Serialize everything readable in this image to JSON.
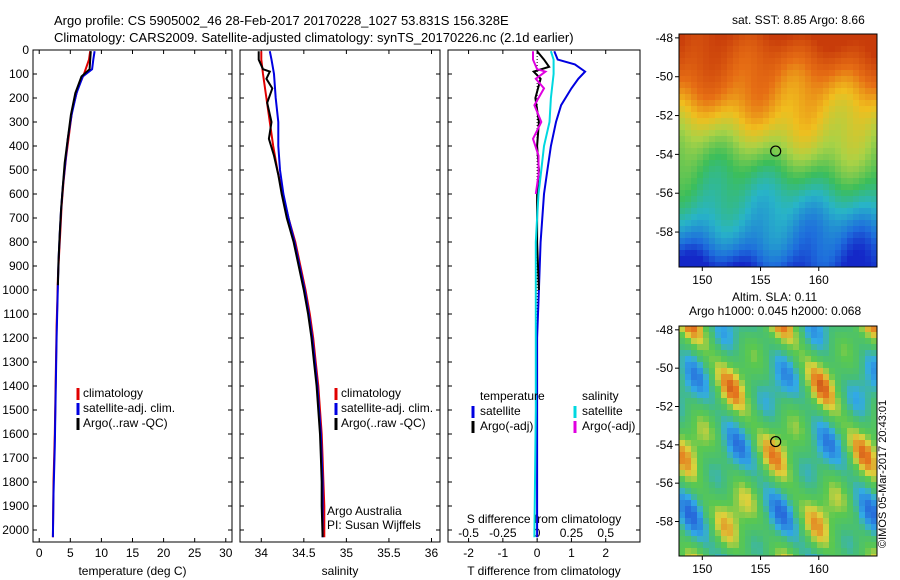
{
  "header": {
    "title_line1": "Argo profile: CS 5905002_46 28-Feb-2017 20170228_1027 53.831S 156.328E",
    "title_line2": "Climatology: CARS2009. Satellite-adjusted climatology: synTS_20170226.nc (2.1d earlier)"
  },
  "colors": {
    "climatology": "#e00000",
    "satellite": "#0000e0",
    "argo": "#000000",
    "satellite_s": "#00d8e0",
    "argo_s": "#e000e0"
  },
  "chart_data": [
    {
      "id": "temperature",
      "type": "line",
      "xlabel": "temperature (deg C)",
      "xlim": [
        -1,
        31
      ],
      "xticks": [
        0,
        5,
        10,
        15,
        20,
        25,
        30
      ],
      "ylim": [
        0,
        2050
      ],
      "yticks": [
        0,
        100,
        200,
        300,
        400,
        500,
        600,
        700,
        800,
        900,
        1000,
        1100,
        1200,
        1300,
        1400,
        1500,
        1600,
        1700,
        1800,
        1900,
        2000
      ],
      "legend": [
        "climatology",
        "satellite-adj. clim.",
        "Argo(..raw -QC)"
      ],
      "series": [
        {
          "name": "climatology",
          "color": "#e00000",
          "points": [
            [
              8.2,
              5
            ],
            [
              8.0,
              40
            ],
            [
              7.2,
              100
            ],
            [
              6.2,
              160
            ],
            [
              5.3,
              250
            ],
            [
              4.8,
              350
            ],
            [
              4.3,
              450
            ],
            [
              3.9,
              550
            ],
            [
              3.6,
              650
            ],
            [
              3.4,
              750
            ],
            [
              3.2,
              850
            ],
            [
              3.0,
              950
            ],
            [
              2.9,
              1050
            ],
            [
              2.8,
              1150
            ],
            [
              2.7,
              1300
            ],
            [
              2.6,
              1450
            ],
            [
              2.5,
              1600
            ],
            [
              2.3,
              1800
            ],
            [
              2.2,
              2030
            ]
          ]
        },
        {
          "name": "satellite-adj. clim.",
          "color": "#0000e0",
          "points": [
            [
              8.9,
              5
            ],
            [
              8.7,
              40
            ],
            [
              8.5,
              80
            ],
            [
              7.0,
              110
            ],
            [
              6.0,
              180
            ],
            [
              5.2,
              270
            ],
            [
              4.6,
              370
            ],
            [
              4.2,
              470
            ],
            [
              3.8,
              570
            ],
            [
              3.5,
              670
            ],
            [
              3.3,
              770
            ],
            [
              3.1,
              880
            ],
            [
              3.0,
              980
            ],
            [
              2.9,
              1080
            ],
            [
              2.8,
              1200
            ],
            [
              2.7,
              1350
            ],
            [
              2.6,
              1500
            ],
            [
              2.5,
              1650
            ],
            [
              2.3,
              1850
            ],
            [
              2.2,
              2030
            ]
          ]
        },
        {
          "name": "Argo(..raw -QC)",
          "color": "#000000",
          "points": [
            [
              8.3,
              5
            ],
            [
              8.2,
              40
            ],
            [
              8.1,
              80
            ],
            [
              6.8,
              110
            ],
            [
              5.8,
              180
            ],
            [
              5.1,
              270
            ],
            [
              4.6,
              370
            ],
            [
              4.1,
              470
            ],
            [
              3.8,
              570
            ],
            [
              3.5,
              670
            ],
            [
              3.3,
              770
            ],
            [
              3.1,
              880
            ],
            [
              3.0,
              980
            ]
          ]
        }
      ]
    },
    {
      "id": "salinity",
      "type": "line",
      "xlabel": "salinity",
      "xlim": [
        33.75,
        36.1
      ],
      "xticks": [
        34,
        34.5,
        35,
        35.5,
        36
      ],
      "xtick_labels": [
        "34",
        "34.5",
        "35",
        "35.5",
        "36"
      ],
      "ylim": [
        0,
        2050
      ],
      "legend": [
        "climatology",
        "satellite-adj. clim.",
        "Argo(..raw -QC)"
      ],
      "annotations": [
        "Argo Australia",
        "PI: Susan Wijffels"
      ],
      "series": [
        {
          "name": "climatology",
          "color": "#e00000",
          "points": [
            [
              34.0,
              5
            ],
            [
              34.0,
              40
            ],
            [
              34.02,
              100
            ],
            [
              34.06,
              200
            ],
            [
              34.1,
              300
            ],
            [
              34.14,
              400
            ],
            [
              34.19,
              500
            ],
            [
              34.25,
              600
            ],
            [
              34.32,
              700
            ],
            [
              34.4,
              800
            ],
            [
              34.46,
              900
            ],
            [
              34.52,
              1000
            ],
            [
              34.57,
              1100
            ],
            [
              34.61,
              1200
            ],
            [
              34.64,
              1300
            ],
            [
              34.67,
              1400
            ],
            [
              34.69,
              1500
            ],
            [
              34.71,
              1600
            ],
            [
              34.72,
              1700
            ],
            [
              34.73,
              1800
            ],
            [
              34.74,
              1900
            ],
            [
              34.74,
              2030
            ]
          ]
        },
        {
          "name": "satellite-adj. clim.",
          "color": "#0000e0",
          "points": [
            [
              34.1,
              5
            ],
            [
              34.12,
              40
            ],
            [
              34.15,
              100
            ],
            [
              34.17,
              200
            ],
            [
              34.2,
              300
            ],
            [
              34.2,
              400
            ],
            [
              34.22,
              500
            ],
            [
              34.26,
              600
            ],
            [
              34.32,
              700
            ],
            [
              34.39,
              800
            ],
            [
              34.45,
              900
            ],
            [
              34.51,
              1000
            ],
            [
              34.56,
              1100
            ],
            [
              34.6,
              1200
            ],
            [
              34.63,
              1300
            ],
            [
              34.66,
              1400
            ],
            [
              34.68,
              1500
            ],
            [
              34.7,
              1600
            ],
            [
              34.71,
              1700
            ],
            [
              34.72,
              1800
            ],
            [
              34.72,
              1900
            ],
            [
              34.72,
              2030
            ]
          ]
        },
        {
          "name": "Argo(..raw -QC)",
          "color": "#000000",
          "points": [
            [
              33.97,
              5
            ],
            [
              33.97,
              40
            ],
            [
              34.02,
              80
            ],
            [
              34.1,
              90
            ],
            [
              34.06,
              120
            ],
            [
              34.13,
              160
            ],
            [
              34.07,
              220
            ],
            [
              34.12,
              300
            ],
            [
              34.09,
              370
            ],
            [
              34.15,
              440
            ],
            [
              34.2,
              520
            ],
            [
              34.24,
              600
            ],
            [
              34.3,
              700
            ],
            [
              34.38,
              800
            ],
            [
              34.44,
              900
            ],
            [
              34.5,
              1000
            ],
            [
              34.55,
              1100
            ],
            [
              34.59,
              1200
            ],
            [
              34.62,
              1300
            ],
            [
              34.65,
              1400
            ],
            [
              34.67,
              1500
            ],
            [
              34.69,
              1600
            ],
            [
              34.7,
              1700
            ],
            [
              34.71,
              1800
            ],
            [
              34.71,
              1900
            ],
            [
              34.72,
              2030
            ]
          ]
        }
      ]
    },
    {
      "id": "difference",
      "type": "line",
      "xlabel": "T difference from climatology",
      "x2label": "S difference from climatology",
      "xlim": [
        -2.6,
        3.0
      ],
      "xticks": [
        -2,
        -1,
        0,
        1,
        2
      ],
      "xtick_labels": [
        "-2",
        "-1",
        "0",
        "1",
        "2"
      ],
      "x2ticks": [
        -0.5,
        -0.25,
        0,
        0.25,
        0.5
      ],
      "x2tick_labels": [
        "-0.5",
        "-0.25",
        "0",
        "0.25",
        "0.5"
      ],
      "x2lim": [
        -0.65,
        0.75
      ],
      "ylim": [
        0,
        2050
      ],
      "legend_groups": [
        {
          "heading": "temperature",
          "items": [
            "satellite",
            "Argo(-adj)"
          ]
        },
        {
          "heading": "salinity",
          "items": [
            "satellite",
            "Argo(-adj)"
          ]
        }
      ],
      "series": [
        {
          "name": "temperature satellite",
          "color": "#0000e0",
          "points": [
            [
              0.5,
              5
            ],
            [
              0.6,
              40
            ],
            [
              1.1,
              60
            ],
            [
              1.4,
              90
            ],
            [
              1.2,
              120
            ],
            [
              1.0,
              160
            ],
            [
              0.7,
              230
            ],
            [
              0.55,
              300
            ],
            [
              0.4,
              400
            ],
            [
              0.3,
              500
            ],
            [
              0.2,
              600
            ],
            [
              0.15,
              700
            ],
            [
              0.1,
              800
            ],
            [
              0.05,
              1000
            ],
            [
              0.0,
              1200
            ],
            [
              0.0,
              1600
            ],
            [
              0.0,
              2030
            ]
          ]
        },
        {
          "name": "temperature Argo(-adj)",
          "color": "#000000",
          "points": [
            [
              0.0,
              5
            ],
            [
              0.2,
              40
            ],
            [
              0.35,
              70
            ],
            [
              -0.1,
              90
            ],
            [
              0.1,
              120
            ],
            [
              -0.05,
              200
            ],
            [
              0.05,
              300
            ],
            [
              0.0,
              400
            ],
            [
              0.05,
              500
            ],
            [
              0.0,
              600
            ],
            [
              0.0,
              800
            ],
            [
              0.05,
              1000
            ]
          ]
        },
        {
          "name": "salinity satellite",
          "color": "#00d8e0",
          "points": [
            [
              0.1,
              5
            ],
            [
              0.12,
              40
            ],
            [
              0.12,
              100
            ],
            [
              0.1,
              200
            ],
            [
              0.09,
              300
            ],
            [
              0.05,
              400
            ],
            [
              0.03,
              500
            ],
            [
              0.01,
              600
            ],
            [
              0.0,
              700
            ],
            [
              -0.01,
              800
            ],
            [
              -0.01,
              1000
            ],
            [
              -0.01,
              1500
            ],
            [
              -0.02,
              2030
            ]
          ]
        },
        {
          "name": "salinity Argo(-adj)",
          "color": "#e000e0",
          "points": [
            [
              -0.03,
              5
            ],
            [
              -0.03,
              40
            ],
            [
              0.0,
              80
            ],
            [
              0.06,
              90
            ],
            [
              -0.01,
              120
            ],
            [
              0.05,
              160
            ],
            [
              -0.02,
              230
            ],
            [
              0.03,
              300
            ],
            [
              -0.03,
              370
            ],
            [
              0.01,
              440
            ],
            [
              0.01,
              520
            ],
            [
              -0.01,
              600
            ]
          ]
        }
      ]
    }
  ],
  "maps": {
    "sst": {
      "title": "sat. SST: 8.85 Argo: 8.66",
      "yticks": [
        -48,
        -50,
        -52,
        -54,
        -56,
        -58
      ],
      "yticks_labels": [
        "-48",
        "-50",
        "-52",
        "-54",
        "-56",
        "-58"
      ],
      "xticks": [
        150,
        155,
        160
      ],
      "xticks_labels": [
        "150",
        "155",
        "160"
      ]
    },
    "sla": {
      "title_line1": "Altim. SLA: 0.11",
      "title_line2": "Argo h1000: 0.045 h2000: 0.068",
      "yticks": [
        -48,
        -50,
        -52,
        -54,
        -56,
        -58
      ],
      "yticks_labels": [
        "-48",
        "-50",
        "-52",
        "-54",
        "-56",
        "-58"
      ],
      "xticks": [
        150,
        155,
        160
      ],
      "xticks_labels": [
        "150",
        "155",
        "160"
      ]
    },
    "stamp": "©IMOS 05-Mar-2017 20:43:01"
  }
}
